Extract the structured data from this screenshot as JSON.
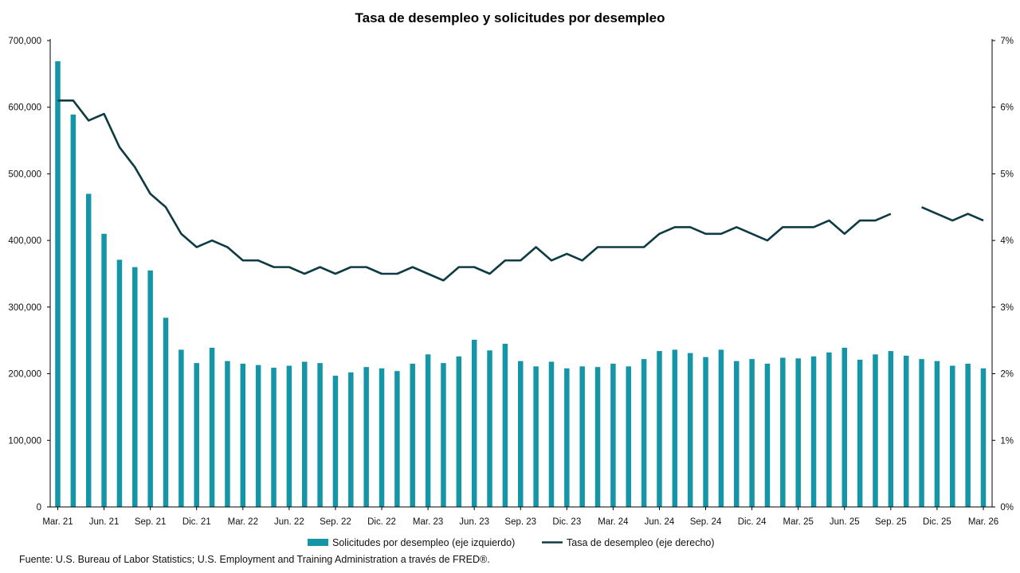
{
  "source": "Fuente: U.S. Bureau of Labor Statistics; U.S. Employment and Training Administration a través de FRED®.",
  "colors": {
    "bar": "#1596a6",
    "line": "#0e3b43",
    "axis": "#000000"
  },
  "chart_data": {
    "type": "bar",
    "title": "Tasa de desempleo y solicitudes por desempleo",
    "x_tick_labels": [
      "Mar. 21",
      "Jun. 21",
      "Sep. 21",
      "Dic. 21",
      "Mar. 22",
      "Jun. 22",
      "Sep. 22",
      "Dic. 22",
      "Mar. 23",
      "Jun. 23",
      "Sep. 23",
      "Dic. 23",
      "Mar. 24",
      "Jun. 24",
      "Sep. 24",
      "Dic. 24",
      "Mar. 25",
      "Jun. 25",
      "Sep. 25",
      "Dic. 25",
      "Mar. 26"
    ],
    "left_axis": {
      "ylim": [
        0,
        700000
      ],
      "tick_labels": [
        "0",
        "100,000",
        "200,000",
        "300,000",
        "400,000",
        "500,000",
        "600,000",
        "700,000"
      ]
    },
    "right_axis": {
      "ylim": [
        0,
        7
      ],
      "tick_labels": [
        "0%",
        "1%",
        "2%",
        "3%",
        "4%",
        "5%",
        "6%",
        "7%"
      ]
    },
    "series": [
      {
        "name": "Solicitudes por desempleo (eje izquierdo)",
        "type": "bar",
        "axis": "left",
        "values": [
          669000,
          589000,
          470000,
          410000,
          371000,
          360000,
          355000,
          284000,
          236000,
          216000,
          239000,
          219000,
          215000,
          213000,
          209000,
          212000,
          218000,
          216000,
          197000,
          202000,
          210000,
          208000,
          204000,
          215000,
          229000,
          216000,
          226000,
          251000,
          235000,
          245000,
          219000,
          211000,
          218000,
          208000,
          211000,
          210000,
          215000,
          211000,
          222000,
          234000,
          236000,
          231000,
          225000,
          236000,
          219000,
          222000,
          215000,
          224000,
          223000,
          226000,
          232000,
          239000,
          221000,
          229000,
          234000,
          227000,
          222000,
          219000,
          212000,
          215000,
          208000
        ]
      },
      {
        "name": "Tasa de desempleo (eje derecho)",
        "type": "line",
        "axis": "right",
        "values": [
          6.1,
          6.1,
          5.8,
          5.9,
          5.4,
          5.1,
          4.7,
          4.5,
          4.1,
          3.9,
          4.0,
          3.9,
          3.7,
          3.7,
          3.6,
          3.6,
          3.5,
          3.6,
          3.5,
          3.6,
          3.6,
          3.5,
          3.5,
          3.6,
          3.5,
          3.4,
          3.6,
          3.6,
          3.5,
          3.7,
          3.7,
          3.9,
          3.7,
          3.8,
          3.7,
          3.9,
          3.9,
          3.9,
          3.9,
          4.1,
          4.2,
          4.2,
          4.1,
          4.1,
          4.2,
          4.1,
          4.0,
          4.2,
          4.2,
          4.2,
          4.3,
          4.1,
          4.3,
          4.3,
          4.4,
          null,
          4.5,
          4.4,
          4.3,
          4.4,
          4.3
        ]
      }
    ],
    "legend": "bottom"
  }
}
